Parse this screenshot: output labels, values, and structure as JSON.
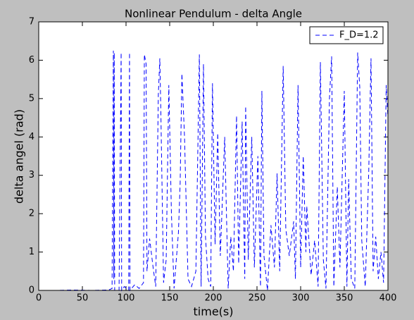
{
  "chart_data": {
    "type": "line",
    "title": "Nonlinear Pendulum - delta Angle",
    "x_label": "time(s)",
    "y_label": "delta angel (rad)",
    "xlim": [
      0,
      400
    ],
    "ylim": [
      0,
      7
    ],
    "xticks": [
      0,
      50,
      100,
      150,
      200,
      250,
      300,
      350,
      400
    ],
    "yticks": [
      0,
      1,
      2,
      3,
      4,
      5,
      6,
      7
    ],
    "legend_position": "upper-right",
    "x": [
      0,
      20,
      40,
      60,
      80,
      84,
      85.5,
      86,
      86.5,
      87,
      92,
      94.4,
      95,
      98,
      103,
      104,
      104.5,
      110,
      115,
      120,
      121,
      123,
      124,
      127,
      131,
      134,
      137,
      138.7,
      140,
      143,
      146,
      149,
      152,
      155,
      160,
      162,
      164,
      167,
      171,
      175,
      180,
      184,
      186,
      188.7,
      191,
      194,
      197,
      199,
      202,
      205,
      208,
      213,
      217,
      220,
      223,
      226.6,
      229,
      233,
      236,
      237,
      240,
      244,
      247,
      251,
      254,
      255.6,
      258,
      262,
      266,
      270,
      273,
      276,
      280,
      283,
      287,
      292,
      294,
      297,
      300,
      303,
      306,
      307,
      312,
      316,
      320,
      322.6,
      326,
      329,
      333,
      335.5,
      338,
      342,
      345,
      350,
      353,
      355,
      358,
      362,
      365.3,
      367.7,
      370,
      374,
      378,
      380.6,
      383,
      386,
      389,
      392,
      395,
      398,
      400
    ],
    "series": [
      {
        "name": "F_D=1.2",
        "color": "#0000ff",
        "dash": "6,4",
        "values": [
          0,
          0,
          0.01,
          0,
          0.01,
          0.05,
          6.25,
          0.3,
          6.2,
          0,
          0,
          6.2,
          0,
          0.1,
          0,
          6.2,
          0,
          0.15,
          0.05,
          0.2,
          6.15,
          5.9,
          0.5,
          1.35,
          0.6,
          0.1,
          5.1,
          6.05,
          4.5,
          0.2,
          0.8,
          5.35,
          2.0,
          0.05,
          1.5,
          2.8,
          5.65,
          4.0,
          0.3,
          0.1,
          0.5,
          6.15,
          0.1,
          5.9,
          1.4,
          0.3,
          0.1,
          5.4,
          1.2,
          4.1,
          0.9,
          4.0,
          0.05,
          1.4,
          0.5,
          4.55,
          0.7,
          4.4,
          0.3,
          4.8,
          0.8,
          4.0,
          0.6,
          3.5,
          0.1,
          5.2,
          0.9,
          0,
          1.7,
          0.6,
          3.05,
          0.5,
          5.85,
          1.6,
          0.9,
          1.8,
          0.3,
          5.35,
          0.6,
          3.5,
          1.0,
          2.2,
          0.4,
          1.3,
          0.1,
          5.95,
          0.8,
          0.05,
          5.0,
          6.1,
          0.1,
          2.7,
          0.6,
          5.2,
          0.1,
          2.9,
          0.3,
          0.05,
          6.2,
          5.3,
          1.3,
          0.1,
          3.1,
          6.05,
          0.5,
          1.4,
          0.3,
          1.0,
          0.2,
          5.35,
          4.5
        ]
      }
    ]
  }
}
